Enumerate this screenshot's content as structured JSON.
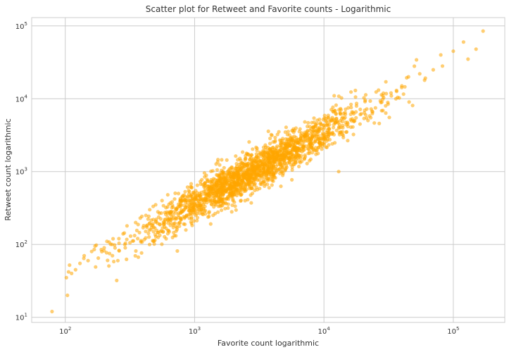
{
  "chart_data": {
    "type": "scatter",
    "title": "Scatter plot for Retweet and Favorite counts - Logarithmic",
    "xlabel": "Favorite count logarithmic",
    "ylabel": "Retweet count logarithmic",
    "xscale": "log",
    "yscale": "log",
    "xlim": [
      55,
      250000
    ],
    "ylim": [
      8.5,
      130000
    ],
    "xticks": [
      100,
      1000,
      10000,
      100000
    ],
    "yticks": [
      10,
      100,
      1000,
      10000,
      100000
    ],
    "tick_labels": {
      "x": [
        {
          "base": "10",
          "exp": "2"
        },
        {
          "base": "10",
          "exp": "3"
        },
        {
          "base": "10",
          "exp": "4"
        },
        {
          "base": "10",
          "exp": "5"
        }
      ],
      "y": [
        {
          "base": "10",
          "exp": "1"
        },
        {
          "base": "10",
          "exp": "2"
        },
        {
          "base": "10",
          "exp": "3"
        },
        {
          "base": "10",
          "exp": "4"
        },
        {
          "base": "10",
          "exp": "5"
        }
      ]
    },
    "grid": true,
    "marker_color": "#FFA500",
    "marker_alpha": 0.55,
    "point_count_hint": "approximately 2000 points",
    "series": [
      {
        "name": "",
        "points": [
          [
            79,
            12
          ],
          [
            104,
            20
          ],
          [
            102,
            35
          ],
          [
            106,
            42
          ],
          [
            108,
            52
          ],
          [
            112,
            40
          ],
          [
            120,
            45
          ],
          [
            130,
            55
          ],
          [
            140,
            70
          ],
          [
            150,
            60
          ],
          [
            160,
            80
          ],
          [
            170,
            95
          ],
          [
            180,
            65
          ],
          [
            190,
            85
          ],
          [
            200,
            90
          ],
          [
            210,
            110
          ],
          [
            220,
            75
          ],
          [
            230,
            100
          ],
          [
            250,
            32
          ],
          [
            255,
            60
          ],
          [
            260,
            120
          ],
          [
            280,
            140
          ],
          [
            300,
            180
          ],
          [
            320,
            130
          ],
          [
            350,
            200
          ],
          [
            380,
            230
          ],
          [
            400,
            170
          ],
          [
            420,
            250
          ],
          [
            450,
            300
          ],
          [
            480,
            220
          ],
          [
            500,
            350
          ],
          [
            520,
            280
          ],
          [
            560,
            400
          ],
          [
            600,
            320
          ],
          [
            620,
            480
          ],
          [
            650,
            370
          ],
          [
            700,
            420
          ],
          [
            750,
            500
          ],
          [
            800,
            450
          ],
          [
            850,
            380
          ],
          [
            900,
            550
          ],
          [
            950,
            600
          ],
          [
            1000,
            500
          ],
          [
            1050,
            650
          ],
          [
            1100,
            420
          ],
          [
            1200,
            700
          ],
          [
            1300,
            600
          ],
          [
            1400,
            800
          ],
          [
            1500,
            650
          ],
          [
            1600,
            900
          ],
          [
            1700,
            750
          ],
          [
            1800,
            1000
          ],
          [
            1900,
            850
          ],
          [
            2000,
            950
          ],
          [
            2200,
            1100
          ],
          [
            2400,
            900
          ],
          [
            2600,
            1300
          ],
          [
            2800,
            1100
          ],
          [
            3000,
            1400
          ],
          [
            3200,
            1200
          ],
          [
            3500,
            1600
          ],
          [
            3800,
            1400
          ],
          [
            4000,
            1800
          ],
          [
            4300,
            1500
          ],
          [
            4600,
            2000
          ],
          [
            5000,
            1700
          ],
          [
            5500,
            2300
          ],
          [
            6000,
            2000
          ],
          [
            6500,
            2600
          ],
          [
            7000,
            2200
          ],
          [
            7500,
            3000
          ],
          [
            8000,
            2500
          ],
          [
            9000,
            3200
          ],
          [
            10000,
            2800
          ],
          [
            11000,
            3800
          ],
          [
            12000,
            11000
          ],
          [
            13000,
            1000
          ],
          [
            14000,
            4000
          ],
          [
            15000,
            3500
          ],
          [
            17000,
            5000
          ],
          [
            19000,
            4500
          ],
          [
            21000,
            6000
          ],
          [
            23000,
            5500
          ],
          [
            25000,
            7500
          ],
          [
            28000,
            9000
          ],
          [
            30000,
            8000
          ],
          [
            33000,
            12000
          ],
          [
            36000,
            10000
          ],
          [
            40000,
            15000
          ],
          [
            45000,
            20000
          ],
          [
            50000,
            28000
          ],
          [
            55000,
            22000
          ],
          [
            60000,
            18000
          ],
          [
            70000,
            25000
          ],
          [
            80000,
            40000
          ],
          [
            100000,
            45000
          ],
          [
            120000,
            60000
          ],
          [
            130000,
            35000
          ],
          [
            150000,
            48000
          ],
          [
            170000,
            85000
          ]
        ]
      }
    ],
    "generated_cloud": {
      "description": "dense log-linear cloud of points following y ≈ 0.35·x, lognormal scatter",
      "count": 1900,
      "x_log10_range": [
        2.05,
        5.0
      ],
      "slope": 1.0,
      "intercept_log10": -0.45,
      "noise_log10_sd": 0.14,
      "seed": 12345
    }
  }
}
